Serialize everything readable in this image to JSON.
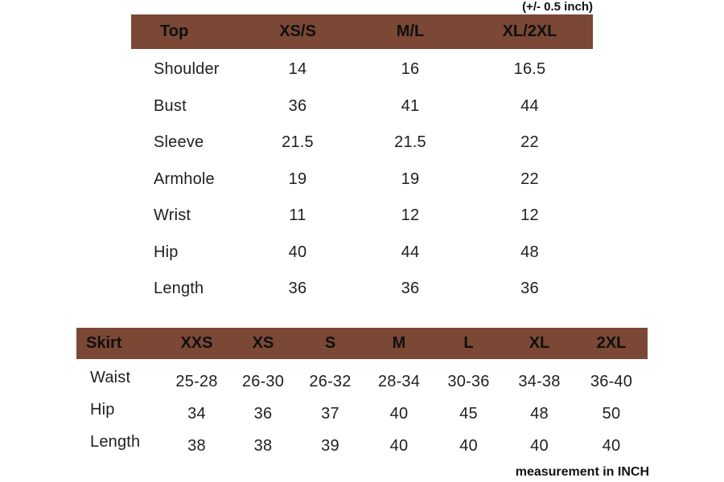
{
  "notes": {
    "tolerance": "(+/- 0.5 inch)",
    "unit": "measurement in INCH"
  },
  "colors": {
    "header_bg": "#7a4835",
    "text": "#1f1f1f",
    "background": "#ffffff"
  },
  "chart_data": [
    {
      "type": "table",
      "title": "Top size chart",
      "header": [
        "Top",
        "XS/S",
        "M/L",
        "XL/2XL"
      ],
      "rows": [
        {
          "label": "Shoulder",
          "values": [
            "14",
            "16",
            "16.5"
          ]
        },
        {
          "label": "Bust",
          "values": [
            "36",
            "41",
            "44"
          ]
        },
        {
          "label": "Sleeve",
          "values": [
            "21.5",
            "21.5",
            "22"
          ]
        },
        {
          "label": "Armhole",
          "values": [
            "19",
            "19",
            "22"
          ]
        },
        {
          "label": "Wrist",
          "values": [
            "11",
            "12",
            "12"
          ]
        },
        {
          "label": "Hip",
          "values": [
            "40",
            "44",
            "48"
          ]
        },
        {
          "label": "Length",
          "values": [
            "36",
            "36",
            "36"
          ]
        }
      ]
    },
    {
      "type": "table",
      "title": "Skirt size chart",
      "header": [
        "Skirt",
        "XXS",
        "XS",
        "S",
        "M",
        "L",
        "XL",
        "2XL"
      ],
      "rows": [
        {
          "label": "Waist",
          "values": [
            "25-28",
            "26-30",
            "26-32",
            "28-34",
            "30-36",
            "34-38",
            "36-40"
          ]
        },
        {
          "label": "Hip",
          "values": [
            "34",
            "36",
            "37",
            "40",
            "45",
            "48",
            "50"
          ]
        },
        {
          "label": "Length",
          "values": [
            "38",
            "38",
            "39",
            "40",
            "40",
            "40",
            "40"
          ]
        }
      ]
    }
  ]
}
